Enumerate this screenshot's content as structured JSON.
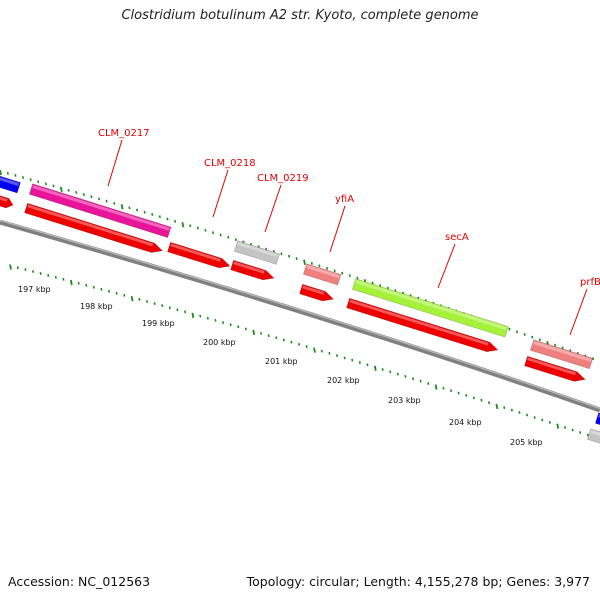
{
  "title": "Clostridium botulinum A2 str. Kyoto, complete genome",
  "footer": {
    "accession": "Accession: NC_012563",
    "stats": "Topology: circular; Length: 4,155,278 bp; Genes: 3,977"
  },
  "colors": {
    "backbone": "#808080",
    "cds": "#ee0000",
    "outer_tick": "#1c8a1c",
    "label": "#e00000"
  },
  "scale_labels": [
    "197 kbp",
    "198 kbp",
    "199 kbp",
    "200 kbp",
    "201 kbp",
    "202 kbp",
    "203 kbp",
    "204 kbp",
    "205 kbp"
  ],
  "genes": [
    {
      "label": "CLM_0217",
      "color": "#e8149a"
    },
    {
      "label": "CLM_0218",
      "color": "#ee0000"
    },
    {
      "label": "CLM_0219",
      "color": "#c4c4c4"
    },
    {
      "label": "yfiA",
      "color": "#f08080"
    },
    {
      "label": "secA",
      "color": "#a6f23a"
    },
    {
      "label": "prfB",
      "color": "#f08080"
    }
  ]
}
